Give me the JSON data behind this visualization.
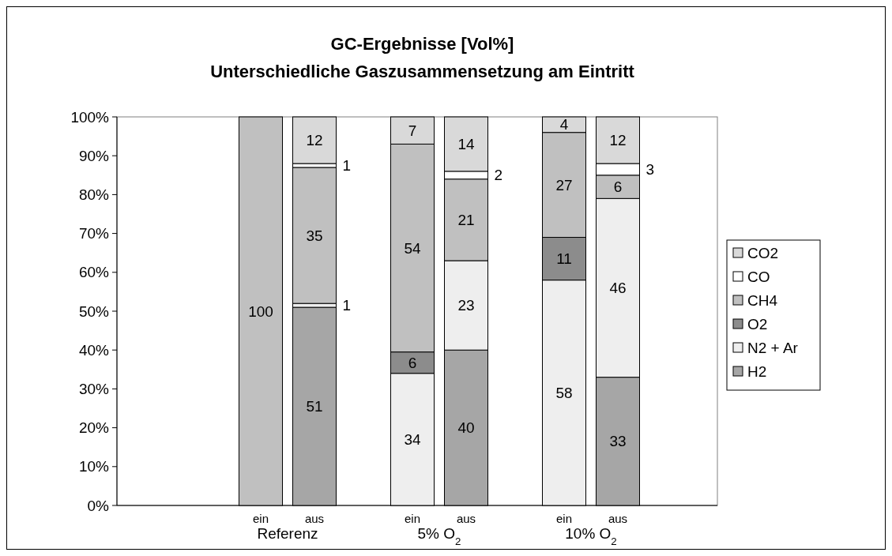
{
  "chart_data": {
    "type": "bar",
    "stacked": true,
    "title": "GC-Ergebnisse [Vol%]",
    "subtitle": "Unterschiedliche Gaszusammensetzung am Eintritt",
    "categories": [
      "ein",
      "aus",
      "ein",
      "aus",
      "ein",
      "aus"
    ],
    "annotations": [
      "Referenz",
      "5% O$_{2}$",
      "10% O$_{2}$"
    ],
    "series": [
      {
        "name": "H2",
        "color": "#a6a6a6",
        "values": [
          null,
          51,
          null,
          40,
          null,
          33
        ],
        "value_labels": [
          null,
          "51",
          null,
          "40",
          null,
          "33"
        ]
      },
      {
        "name": "N2 + Ar",
        "color": "#eeeeee",
        "values": [
          null,
          1,
          34,
          23,
          58,
          46
        ],
        "value_labels": [
          null,
          "1",
          "34",
          "23",
          "58",
          "46"
        ]
      },
      {
        "name": "O2",
        "color": "#8c8c8c",
        "values": [
          null,
          null,
          5.5,
          null,
          11,
          null
        ],
        "value_labels": [
          null,
          null,
          "6",
          null,
          "11",
          null
        ]
      },
      {
        "name": "CH4",
        "color": "#c0c0c0",
        "values": [
          100,
          35,
          53.5,
          21,
          27,
          6
        ],
        "value_labels": [
          "100",
          "35",
          "54",
          "21",
          "27",
          "6"
        ]
      },
      {
        "name": "CO",
        "color": "#ffffff",
        "values": [
          null,
          1,
          null,
          2,
          null,
          3
        ],
        "value_labels": [
          null,
          "1",
          null,
          "2",
          null,
          "3"
        ]
      },
      {
        "name": "CO2",
        "color": "#d9d9d9",
        "values": [
          null,
          12,
          7,
          14,
          4,
          12
        ],
        "value_labels": [
          null,
          "12",
          "7",
          "14",
          "4",
          "12"
        ]
      }
    ],
    "ylim": [
      0,
      100
    ],
    "yticks": [
      {
        "value": 0,
        "label": "0%"
      },
      {
        "value": 10,
        "label": "10%"
      },
      {
        "value": 20,
        "label": "20%"
      },
      {
        "value": 30,
        "label": "30%"
      },
      {
        "value": 40,
        "label": "40%"
      },
      {
        "value": 50,
        "label": "50%"
      },
      {
        "value": 60,
        "label": "60%"
      },
      {
        "value": 70,
        "label": "70%"
      },
      {
        "value": 80,
        "label": "80%"
      },
      {
        "value": 90,
        "label": "90%"
      },
      {
        "value": 100,
        "label": "100%"
      }
    ],
    "legend": "right"
  }
}
